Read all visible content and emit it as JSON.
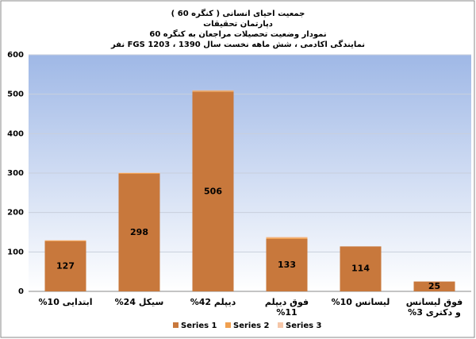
{
  "chart_data": {
    "type": "stacked_bar",
    "title": [
      "جمعیت احیای انسانی ( کنگره 60 )",
      "دپارتمان تحقیقات",
      "نمودار وضعیت تحصیلات مراجعان به کنگره 60",
      "نمایندگی اکادمی ، شش ماهه نخست سال 1390 ، 1203 FGS نفر"
    ],
    "categories": [
      "ابتدایی 10%",
      "سیکل 24%",
      "دیپلم 42%",
      "فوق دیپلم 11%",
      "لیسانس 10%",
      "فوق لیسانس و دکتری 3%"
    ],
    "series": [
      {
        "name": "Series 1",
        "color": "#c8783c",
        "values": [
          127,
          298,
          506,
          133,
          114,
          25
        ]
      },
      {
        "name": "Series 2",
        "color": "#f0a050",
        "values": [
          2,
          2,
          3,
          3,
          0,
          0
        ]
      },
      {
        "name": "Series 3",
        "color": "#f5c6a8",
        "values": [
          1,
          1,
          1,
          2,
          0,
          0
        ]
      }
    ],
    "ylim": [
      0,
      600
    ],
    "yticks": [
      0,
      100,
      200,
      300,
      400,
      500,
      600
    ],
    "grid": true,
    "legend": "bottom"
  }
}
